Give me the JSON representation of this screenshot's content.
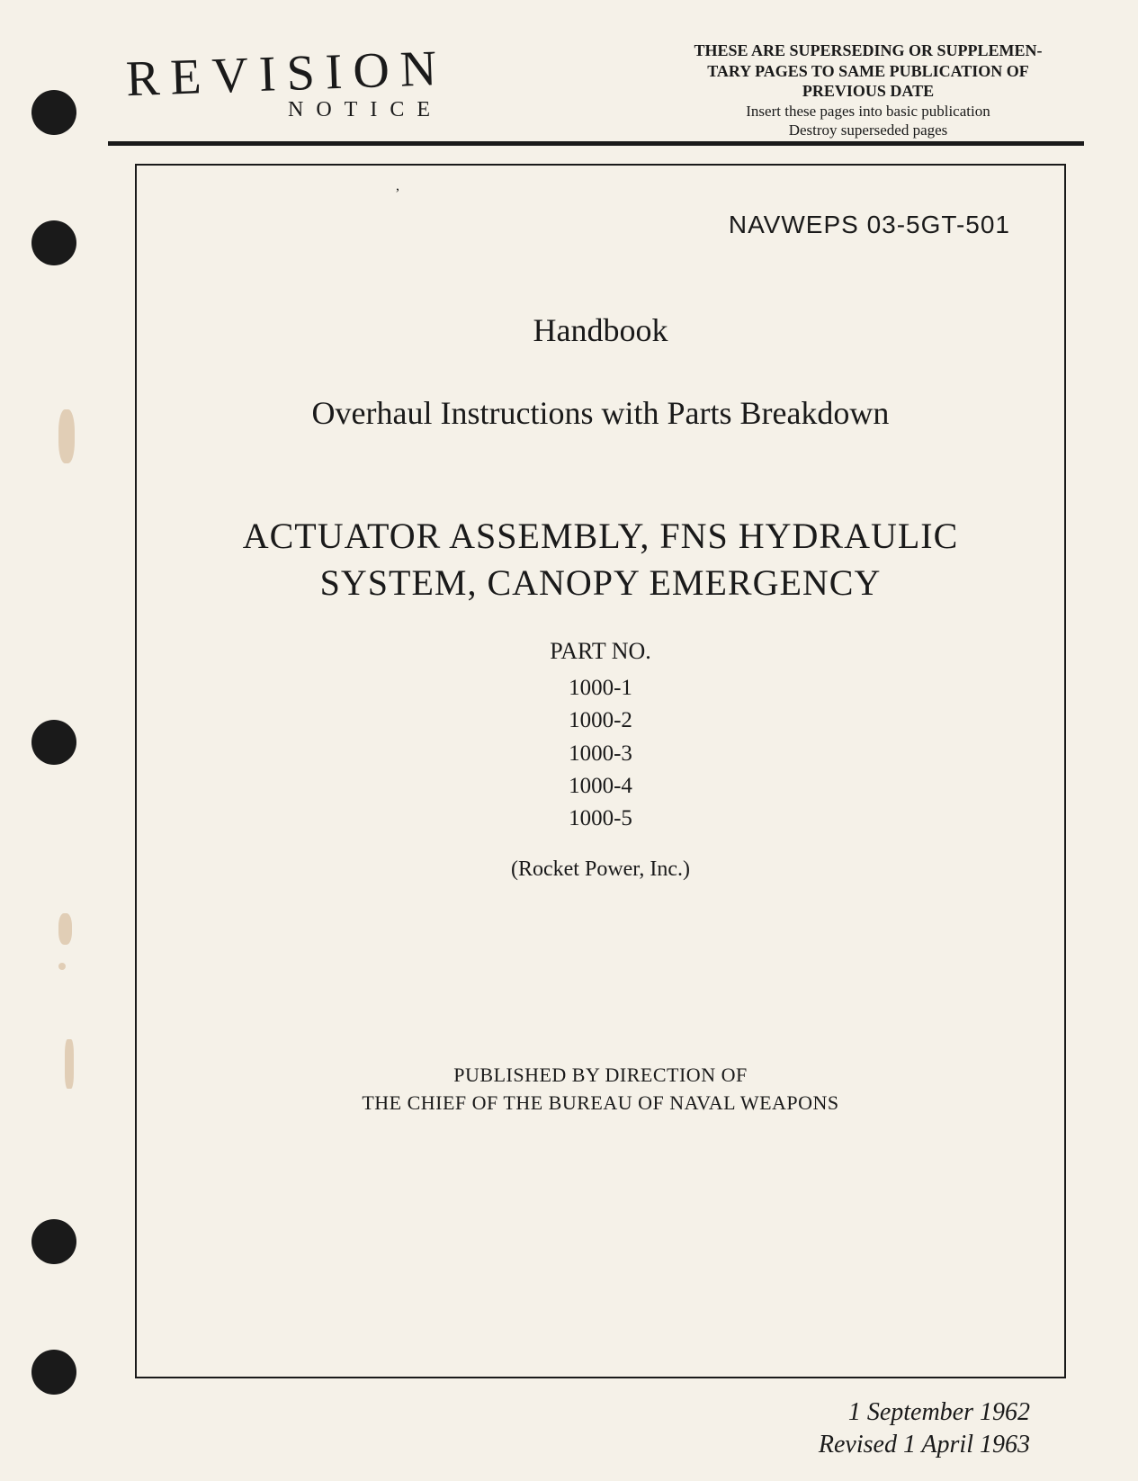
{
  "colors": {
    "background": "#f5f1e8",
    "text": "#1a1a1a",
    "stain": "#c49a6c"
  },
  "revision": {
    "title": "REVISION",
    "notice": "NOTICE",
    "supersede_line1": "THESE ARE SUPERSEDING OR SUPPLEMEN-",
    "supersede_line2": "TARY PAGES TO SAME PUBLICATION OF",
    "prev_date": "PREVIOUS DATE",
    "insert": "Insert these pages into basic publication",
    "destroy": "Destroy superseded pages"
  },
  "document": {
    "number": "NAVWEPS 03-5GT-501",
    "handbook": "Handbook",
    "overhaul": "Overhaul Instructions with Parts Breakdown",
    "title_line1": "ACTUATOR ASSEMBLY, FNS HYDRAULIC",
    "title_line2": "SYSTEM, CANOPY EMERGENCY",
    "part_no_label": "PART NO.",
    "part_numbers": [
      "1000-1",
      "1000-2",
      "1000-3",
      "1000-4",
      "1000-5"
    ],
    "company": "(Rocket Power, Inc.)",
    "published_line1": "PUBLISHED BY DIRECTION OF",
    "published_line2": "THE CHIEF OF THE BUREAU OF NAVAL WEAPONS",
    "date": "1 September 1962",
    "revised": "Revised 1 April 1963"
  }
}
